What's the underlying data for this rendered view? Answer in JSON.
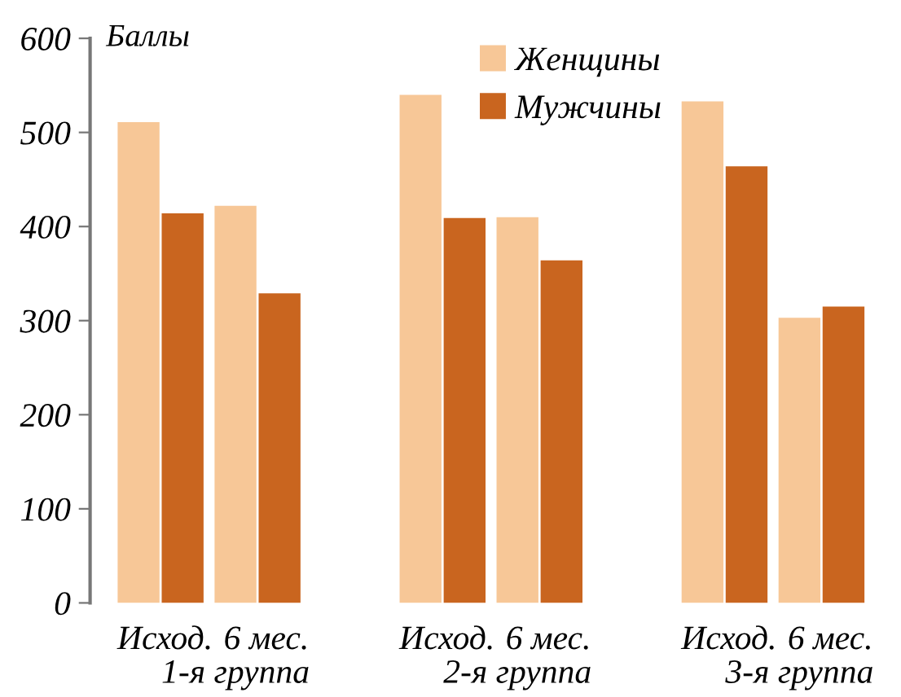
{
  "chart_data": {
    "type": "bar",
    "ylabel": "Баллы",
    "categories": [
      "Исход.",
      "6 мес.",
      "Исход.",
      "6 мес.",
      "Исход.",
      "6 мес."
    ],
    "series": [
      {
        "name": "Женщины",
        "color": "#f7c797",
        "values": [
          511,
          422,
          540,
          410,
          533,
          303
        ]
      },
      {
        "name": "Мужчины",
        "color": "#c9651f",
        "values": [
          414,
          329,
          409,
          364,
          464,
          315
        ]
      }
    ],
    "annotations": [
      "1-я группа",
      "2-я группа",
      "3-я группа"
    ],
    "ylim": [
      0,
      600
    ],
    "yticks": [
      0,
      100,
      200,
      300,
      400,
      500,
      600
    ],
    "grid": false,
    "legend": "top"
  }
}
